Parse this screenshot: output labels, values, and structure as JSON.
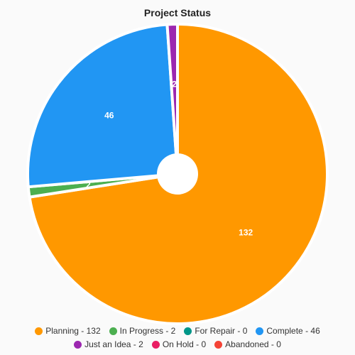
{
  "chart_data": {
    "type": "pie",
    "title": "Project Status",
    "slices": [
      {
        "name": "Planning",
        "value": 132,
        "color": "#ff9800",
        "label": "132"
      },
      {
        "name": "In Progress",
        "value": 2,
        "color": "#4caf50",
        "label": "2"
      },
      {
        "name": "For Repair",
        "value": 0,
        "color": "#009688",
        "label": ""
      },
      {
        "name": "Complete",
        "value": 46,
        "color": "#2196f3",
        "label": "46"
      },
      {
        "name": "Just an Idea",
        "value": 2,
        "color": "#9c27b0",
        "label": "2"
      },
      {
        "name": "On Hold",
        "value": 0,
        "color": "#e91e63",
        "label": ""
      },
      {
        "name": "Abandoned",
        "value": 0,
        "color": "#f44336",
        "label": ""
      }
    ],
    "legend": [
      "Planning - 132",
      "In Progress - 2",
      "For Repair - 0",
      "Complete - 46",
      "Just an Idea - 2",
      "On Hold - 0",
      "Abandoned - 0"
    ],
    "legend_position": "bottom"
  }
}
